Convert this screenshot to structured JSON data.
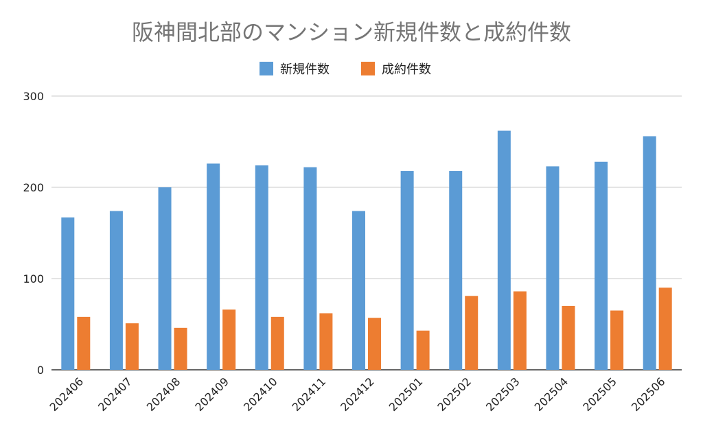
{
  "chart_data": {
    "type": "bar",
    "title": "阪神間北部のマンション新規件数と成約件数",
    "xlabel": "",
    "ylabel": "",
    "ylim": [
      0,
      300
    ],
    "yticks": [
      0,
      100,
      200,
      300
    ],
    "grid": true,
    "legend_position": "top",
    "categories": [
      "202406",
      "202407",
      "202408",
      "202409",
      "202410",
      "202411",
      "202412",
      "202501",
      "202502",
      "202503",
      "202504",
      "202505",
      "202506"
    ],
    "series": [
      {
        "name": "新規件数",
        "color": "#5b9bd5",
        "values": [
          167,
          174,
          200,
          226,
          224,
          222,
          174,
          218,
          218,
          262,
          223,
          228,
          256
        ]
      },
      {
        "name": "成約件数",
        "color": "#ed7d31",
        "values": [
          58,
          51,
          46,
          66,
          58,
          62,
          57,
          43,
          81,
          86,
          70,
          65,
          90
        ]
      }
    ]
  }
}
